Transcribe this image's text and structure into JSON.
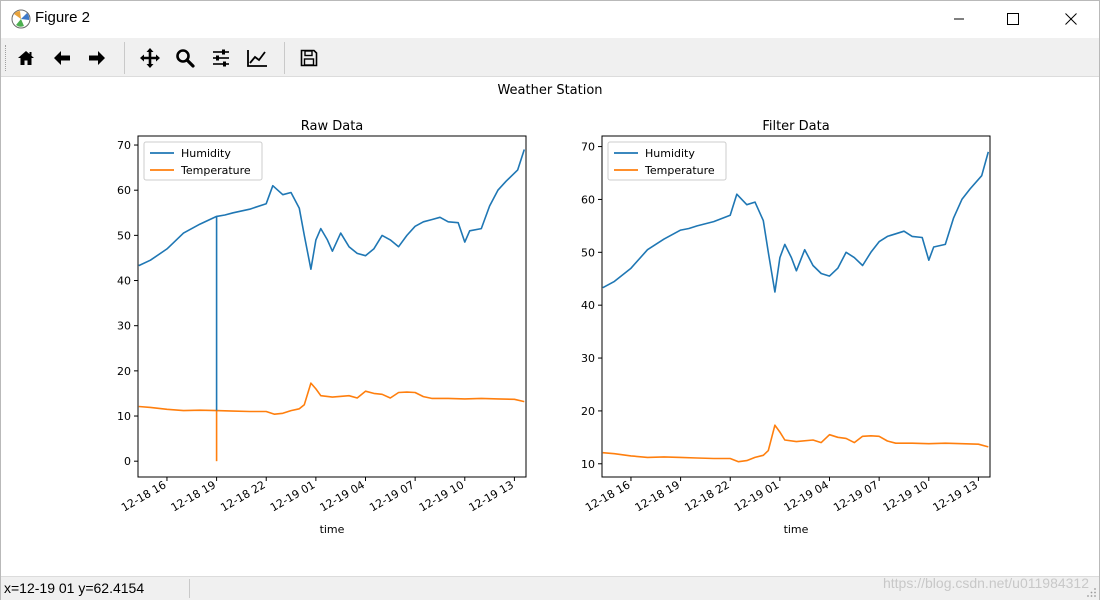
{
  "window": {
    "title": "Figure 2",
    "icon": "matplotlib-icon"
  },
  "toolbar": {
    "buttons": [
      {
        "name": "home",
        "icon": "home-icon"
      },
      {
        "name": "back",
        "icon": "arrow-left-icon"
      },
      {
        "name": "forward",
        "icon": "arrow-right-icon"
      },
      {
        "name": "pan",
        "icon": "move-icon"
      },
      {
        "name": "zoom",
        "icon": "magnifier-icon"
      },
      {
        "name": "subplots",
        "icon": "sliders-icon"
      },
      {
        "name": "edit-axes",
        "icon": "line-chart-icon"
      },
      {
        "name": "save",
        "icon": "floppy-disk-icon"
      }
    ]
  },
  "figure": {
    "suptitle": "Weather Station"
  },
  "status": {
    "readout": "x=12-19 01 y=62.4154",
    "watermark": "https://blog.csdn.net/u011984312"
  },
  "colors": {
    "humidity": "#1f77b4",
    "temperature": "#ff7f0e"
  },
  "chart_data": [
    {
      "type": "line",
      "title": "Raw Data",
      "xlabel": "time",
      "ylabel": "",
      "x_ticks": [
        "12-18 16",
        "12-18 19",
        "12-18 22",
        "12-19 01",
        "12-19 04",
        "12-19 07",
        "12-19 10",
        "12-19 13"
      ],
      "x": [
        "12-18 16",
        "12-18 19",
        "12-18 22",
        "12-19 01",
        "12-19 04",
        "12-19 07",
        "12-19 10",
        "12-19 13"
      ],
      "yticks": [
        0,
        10,
        20,
        30,
        40,
        50,
        60,
        70
      ],
      "ylim": [
        -3.5,
        72
      ],
      "legend": "upper-left",
      "series": [
        {
          "name": "Humidity",
          "color": "#1f77b4",
          "points": [
            [
              14.3,
              43.3
            ],
            [
              15,
              44.5
            ],
            [
              16,
              47
            ],
            [
              17,
              50.5
            ],
            [
              18,
              52.5
            ],
            [
              19,
              54.2
            ],
            [
              19.5,
              54.5
            ],
            [
              20,
              55
            ],
            [
              21,
              55.8
            ],
            [
              22,
              57
            ],
            [
              22.4,
              61
            ],
            [
              23,
              59
            ],
            [
              23.5,
              59.5
            ],
            [
              24,
              56
            ],
            [
              24.3,
              50
            ],
            [
              24.7,
              42.5
            ],
            [
              25,
              49
            ],
            [
              25.3,
              51.5
            ],
            [
              25.7,
              49
            ],
            [
              26,
              46.5
            ],
            [
              26.5,
              50.5
            ],
            [
              27,
              47.5
            ],
            [
              27.5,
              46
            ],
            [
              28,
              45.5
            ],
            [
              28.5,
              47
            ],
            [
              29,
              50
            ],
            [
              29.5,
              49
            ],
            [
              30,
              47.5
            ],
            [
              30.5,
              50
            ],
            [
              31,
              52
            ],
            [
              31.5,
              53
            ],
            [
              32,
              53.5
            ],
            [
              32.5,
              54
            ],
            [
              33,
              53
            ],
            [
              33.6,
              52.8
            ],
            [
              34,
              48.5
            ],
            [
              34.3,
              51
            ],
            [
              35,
              51.5
            ],
            [
              35.5,
              56.5
            ],
            [
              36,
              60
            ],
            [
              36.5,
              62
            ],
            [
              37.2,
              64.5
            ],
            [
              37.6,
              69
            ]
          ]
        },
        {
          "name": "Temperature",
          "color": "#ff7f0e",
          "points": [
            [
              14.3,
              12.1
            ],
            [
              15,
              11.9
            ],
            [
              16,
              11.5
            ],
            [
              17,
              11.2
            ],
            [
              18,
              11.3
            ],
            [
              19,
              11.2
            ],
            [
              20,
              11.1
            ],
            [
              21,
              11
            ],
            [
              22,
              11
            ],
            [
              22.5,
              10.4
            ],
            [
              23,
              10.6
            ],
            [
              23.5,
              11.2
            ],
            [
              24,
              11.6
            ],
            [
              24.3,
              12.5
            ],
            [
              24.7,
              17.3
            ],
            [
              25,
              16
            ],
            [
              25.3,
              14.5
            ],
            [
              26,
              14.2
            ],
            [
              27,
              14.5
            ],
            [
              27.5,
              14
            ],
            [
              28,
              15.5
            ],
            [
              28.5,
              15
            ],
            [
              29,
              14.8
            ],
            [
              29.5,
              14
            ],
            [
              30,
              15.2
            ],
            [
              30.5,
              15.3
            ],
            [
              31,
              15.2
            ],
            [
              31.5,
              14.3
            ],
            [
              32,
              13.9
            ],
            [
              33,
              13.9
            ],
            [
              34,
              13.8
            ],
            [
              35,
              13.9
            ],
            [
              36,
              13.8
            ],
            [
              37,
              13.7
            ],
            [
              37.6,
              13.2
            ]
          ]
        }
      ],
      "spike": {
        "x": 19,
        "humidity_y": 54.2,
        "temperature_y": 11.2,
        "min_y": 0
      }
    },
    {
      "type": "line",
      "title": "Filter Data",
      "xlabel": "time",
      "ylabel": "",
      "x_ticks": [
        "12-18 16",
        "12-18 19",
        "12-18 22",
        "12-19 01",
        "12-19 04",
        "12-19 07",
        "12-19 10",
        "12-19 13"
      ],
      "x": [
        "12-18 16",
        "12-18 19",
        "12-18 22",
        "12-19 01",
        "12-19 04",
        "12-19 07",
        "12-19 10",
        "12-19 13"
      ],
      "yticks": [
        10,
        20,
        30,
        40,
        50,
        60,
        70
      ],
      "ylim": [
        7.5,
        72
      ],
      "legend": "upper-left",
      "series": [
        {
          "name": "Humidity",
          "color": "#1f77b4",
          "points": [
            [
              14.3,
              43.3
            ],
            [
              15,
              44.5
            ],
            [
              16,
              47
            ],
            [
              17,
              50.5
            ],
            [
              18,
              52.5
            ],
            [
              19,
              54.2
            ],
            [
              19.5,
              54.5
            ],
            [
              20,
              55
            ],
            [
              21,
              55.8
            ],
            [
              22,
              57
            ],
            [
              22.4,
              61
            ],
            [
              23,
              59
            ],
            [
              23.5,
              59.5
            ],
            [
              24,
              56
            ],
            [
              24.3,
              50
            ],
            [
              24.7,
              42.5
            ],
            [
              25,
              49
            ],
            [
              25.3,
              51.5
            ],
            [
              25.7,
              49
            ],
            [
              26,
              46.5
            ],
            [
              26.5,
              50.5
            ],
            [
              27,
              47.5
            ],
            [
              27.5,
              46
            ],
            [
              28,
              45.5
            ],
            [
              28.5,
              47
            ],
            [
              29,
              50
            ],
            [
              29.5,
              49
            ],
            [
              30,
              47.5
            ],
            [
              30.5,
              50
            ],
            [
              31,
              52
            ],
            [
              31.5,
              53
            ],
            [
              32,
              53.5
            ],
            [
              32.5,
              54
            ],
            [
              33,
              53
            ],
            [
              33.6,
              52.8
            ],
            [
              34,
              48.5
            ],
            [
              34.3,
              51
            ],
            [
              35,
              51.5
            ],
            [
              35.5,
              56.5
            ],
            [
              36,
              60
            ],
            [
              36.5,
              62
            ],
            [
              37.2,
              64.5
            ],
            [
              37.6,
              69
            ]
          ]
        },
        {
          "name": "Temperature",
          "color": "#ff7f0e",
          "points": [
            [
              14.3,
              12.1
            ],
            [
              15,
              11.9
            ],
            [
              16,
              11.5
            ],
            [
              17,
              11.2
            ],
            [
              18,
              11.3
            ],
            [
              19,
              11.2
            ],
            [
              20,
              11.1
            ],
            [
              21,
              11
            ],
            [
              22,
              11
            ],
            [
              22.5,
              10.4
            ],
            [
              23,
              10.6
            ],
            [
              23.5,
              11.2
            ],
            [
              24,
              11.6
            ],
            [
              24.3,
              12.5
            ],
            [
              24.7,
              17.3
            ],
            [
              25,
              16
            ],
            [
              25.3,
              14.5
            ],
            [
              26,
              14.2
            ],
            [
              27,
              14.5
            ],
            [
              27.5,
              14
            ],
            [
              28,
              15.5
            ],
            [
              28.5,
              15
            ],
            [
              29,
              14.8
            ],
            [
              29.5,
              14
            ],
            [
              30,
              15.2
            ],
            [
              30.5,
              15.3
            ],
            [
              31,
              15.2
            ],
            [
              31.5,
              14.3
            ],
            [
              32,
              13.9
            ],
            [
              33,
              13.9
            ],
            [
              34,
              13.8
            ],
            [
              35,
              13.9
            ],
            [
              36,
              13.8
            ],
            [
              37,
              13.7
            ],
            [
              37.6,
              13.2
            ]
          ]
        }
      ]
    }
  ]
}
